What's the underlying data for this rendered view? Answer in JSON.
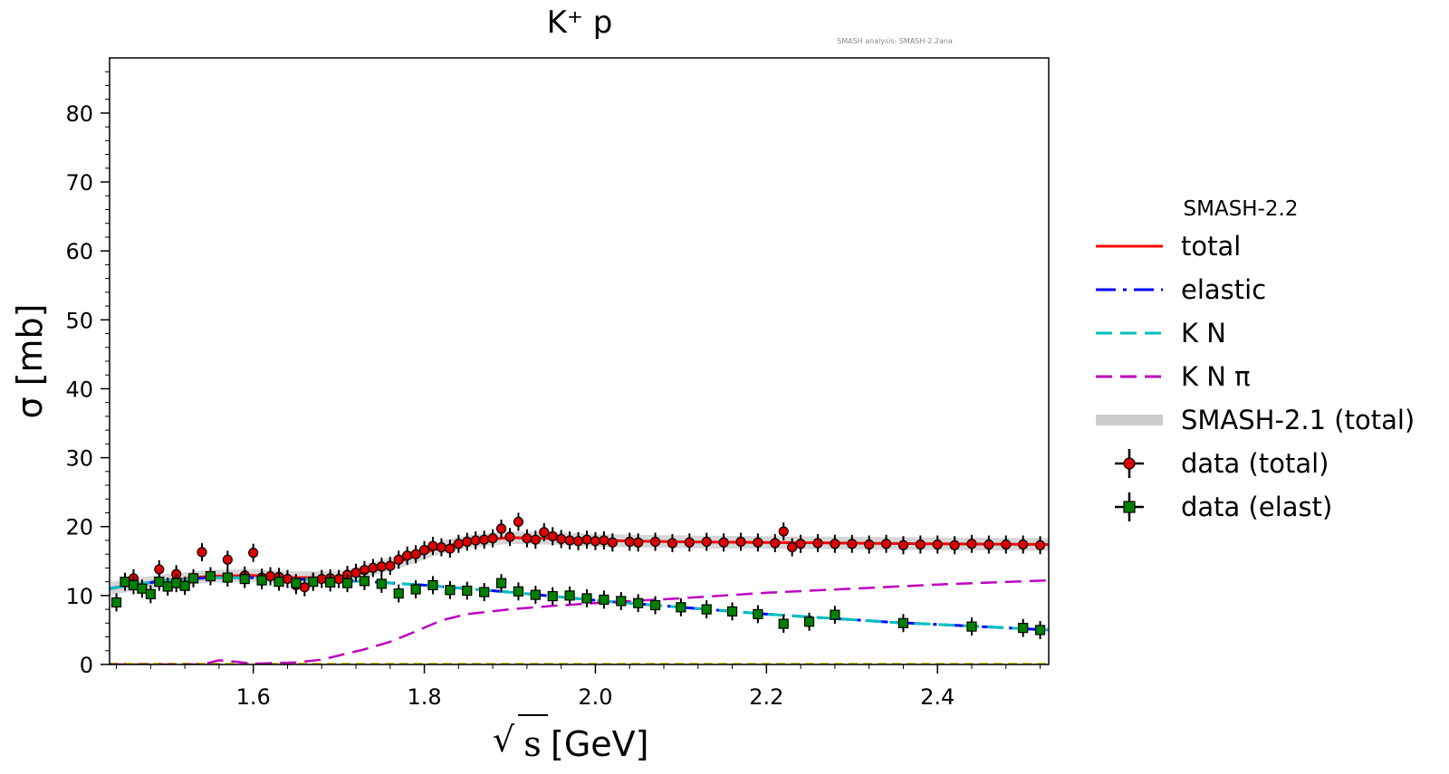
{
  "chart_data": {
    "type": "scatter",
    "title": "K⁺ p",
    "annotation": "SMASH analysis: SMASH-2.2ana",
    "xlabel": "√s [GeV]",
    "xlabel_root": "√",
    "xlabel_var": "s",
    "xlabel_unit": "[GeV]",
    "ylabel": "σ [mb]",
    "xlim": [
      1.432,
      2.53
    ],
    "ylim": [
      0,
      88
    ],
    "x_ticks": [
      1.6,
      1.8,
      2.0,
      2.2,
      2.4
    ],
    "x_tick_labels": [
      "1.6",
      "1.8",
      "2.0",
      "2.2",
      "2.4"
    ],
    "y_ticks": [
      0,
      10,
      20,
      30,
      40,
      50,
      60,
      70,
      80
    ],
    "y_tick_labels": [
      "0",
      "10",
      "20",
      "30",
      "40",
      "50",
      "60",
      "70",
      "80"
    ],
    "grid": false,
    "legend_placement": "outside-right",
    "legend_title": "SMASH-2.2",
    "series": [
      {
        "name": "total",
        "kind": "line",
        "color": "#ff0000",
        "style": "solid",
        "x": [
          1.432,
          1.46,
          1.5,
          1.55,
          1.6,
          1.65,
          1.7,
          1.72,
          1.75,
          1.78,
          1.8,
          1.82,
          1.85,
          1.88,
          1.9,
          1.95,
          2.0,
          2.05,
          2.1,
          2.2,
          2.3,
          2.4,
          2.53
        ],
        "y": [
          11.0,
          11.6,
          12.2,
          12.8,
          12.9,
          12.6,
          12.6,
          13.2,
          14.2,
          15.3,
          16.2,
          17.0,
          17.8,
          18.2,
          18.4,
          18.3,
          18.0,
          17.9,
          17.8,
          17.7,
          17.6,
          17.5,
          17.4
        ]
      },
      {
        "name": "elastic",
        "kind": "line",
        "color": "#0000ff",
        "style": "dashdot",
        "x": [
          1.432,
          1.46,
          1.5,
          1.55,
          1.6,
          1.65,
          1.7,
          1.75,
          1.8,
          1.85,
          1.9,
          1.95,
          2.0,
          2.05,
          2.1,
          2.15,
          2.2,
          2.25,
          2.3,
          2.35,
          2.4,
          2.45,
          2.53
        ],
        "y": [
          11.0,
          11.6,
          12.2,
          12.6,
          12.6,
          12.4,
          12.2,
          11.9,
          11.5,
          11.0,
          10.5,
          9.9,
          9.3,
          8.8,
          8.3,
          7.8,
          7.3,
          6.9,
          6.5,
          6.1,
          5.8,
          5.5,
          5.0
        ]
      },
      {
        "name": "K N",
        "kind": "line",
        "color": "#00bfbf",
        "style": "dashed",
        "x": [
          1.432,
          1.46,
          1.5,
          1.55,
          1.6,
          1.65,
          1.7,
          1.75,
          1.8,
          1.85,
          1.9,
          1.95,
          2.0,
          2.05,
          2.1,
          2.15,
          2.2,
          2.25,
          2.3,
          2.35,
          2.4,
          2.45,
          2.53
        ],
        "y": [
          11.0,
          11.6,
          12.2,
          12.6,
          12.6,
          12.4,
          12.2,
          11.9,
          11.5,
          11.0,
          10.5,
          9.9,
          9.3,
          8.8,
          8.3,
          7.8,
          7.3,
          6.9,
          6.5,
          6.1,
          5.8,
          5.5,
          5.0
        ]
      },
      {
        "name": "K N π",
        "kind": "line",
        "color": "#bf00bf",
        "style": "dashed",
        "x": [
          1.432,
          1.54,
          1.56,
          1.58,
          1.6,
          1.65,
          1.68,
          1.7,
          1.73,
          1.76,
          1.79,
          1.82,
          1.85,
          1.9,
          1.95,
          2.0,
          2.1,
          2.2,
          2.3,
          2.4,
          2.53
        ],
        "y": [
          0.0,
          0.0,
          0.6,
          0.4,
          0.1,
          0.3,
          0.7,
          1.3,
          2.2,
          3.3,
          4.8,
          6.4,
          7.3,
          8.0,
          8.5,
          8.9,
          9.6,
          10.4,
          11.0,
          11.6,
          12.2
        ]
      },
      {
        "name": "SMASH-2.1 (total)",
        "kind": "band",
        "color": "#cccccc",
        "style": "solid",
        "x": [
          1.432,
          1.46,
          1.5,
          1.55,
          1.6,
          1.65,
          1.7,
          1.72,
          1.75,
          1.78,
          1.8,
          1.82,
          1.85,
          1.88,
          1.9,
          1.95,
          2.0,
          2.05,
          2.1,
          2.2,
          2.3,
          2.4,
          2.53
        ],
        "y": [
          11.0,
          11.6,
          12.2,
          12.8,
          12.9,
          12.6,
          12.6,
          13.2,
          14.2,
          15.3,
          16.2,
          17.0,
          17.8,
          18.2,
          18.4,
          18.3,
          18.0,
          17.9,
          17.8,
          17.7,
          17.6,
          17.5,
          17.4
        ]
      },
      {
        "name": "data (total)",
        "kind": "points",
        "marker": "circle",
        "color": "#dd0000",
        "x": [
          1.46,
          1.49,
          1.51,
          1.54,
          1.57,
          1.59,
          1.6,
          1.61,
          1.62,
          1.63,
          1.64,
          1.65,
          1.66,
          1.67,
          1.68,
          1.69,
          1.7,
          1.71,
          1.72,
          1.73,
          1.74,
          1.75,
          1.76,
          1.77,
          1.78,
          1.79,
          1.8,
          1.81,
          1.82,
          1.83,
          1.84,
          1.85,
          1.86,
          1.87,
          1.88,
          1.89,
          1.9,
          1.91,
          1.92,
          1.93,
          1.94,
          1.95,
          1.96,
          1.97,
          1.98,
          1.99,
          2.0,
          2.01,
          2.02,
          2.04,
          2.05,
          2.07,
          2.09,
          2.11,
          2.13,
          2.15,
          2.17,
          2.19,
          2.21,
          2.22,
          2.23,
          2.24,
          2.26,
          2.28,
          2.3,
          2.32,
          2.34,
          2.36,
          2.38,
          2.4,
          2.42,
          2.44,
          2.46,
          2.48,
          2.5,
          2.52
        ],
        "y": [
          12.5,
          13.8,
          13.1,
          16.3,
          15.2,
          12.9,
          16.2,
          12.6,
          12.8,
          12.7,
          12.4,
          11.5,
          11.2,
          12.0,
          12.4,
          12.5,
          12.4,
          13.0,
          13.3,
          13.7,
          14.0,
          14.2,
          14.3,
          15.2,
          15.8,
          16.0,
          16.6,
          17.2,
          17.0,
          16.8,
          17.5,
          17.8,
          18.0,
          18.1,
          18.3,
          19.7,
          18.5,
          20.7,
          18.3,
          18.1,
          19.2,
          18.6,
          18.2,
          18.0,
          17.9,
          18.1,
          17.9,
          18.0,
          17.7,
          17.8,
          17.7,
          17.8,
          17.6,
          17.7,
          17.8,
          17.7,
          17.8,
          17.7,
          17.6,
          19.3,
          17.0,
          17.5,
          17.6,
          17.5,
          17.5,
          17.4,
          17.5,
          17.3,
          17.4,
          17.4,
          17.3,
          17.5,
          17.4,
          17.4,
          17.4,
          17.3
        ]
      },
      {
        "name": "data (elast)",
        "kind": "points",
        "marker": "square",
        "color": "#008000",
        "x": [
          1.44,
          1.45,
          1.46,
          1.47,
          1.48,
          1.49,
          1.5,
          1.51,
          1.52,
          1.53,
          1.55,
          1.57,
          1.59,
          1.61,
          1.63,
          1.65,
          1.67,
          1.69,
          1.71,
          1.73,
          1.75,
          1.77,
          1.79,
          1.81,
          1.83,
          1.85,
          1.87,
          1.89,
          1.91,
          1.93,
          1.95,
          1.97,
          1.99,
          2.01,
          2.03,
          2.05,
          2.07,
          2.1,
          2.13,
          2.16,
          2.19,
          2.22,
          2.25,
          2.28,
          2.36,
          2.44,
          2.5,
          2.52
        ],
        "y": [
          9.0,
          12.0,
          11.5,
          11.0,
          10.2,
          12.0,
          11.3,
          11.8,
          11.4,
          12.5,
          12.8,
          12.6,
          12.4,
          12.2,
          12.0,
          11.8,
          12.0,
          11.9,
          11.8,
          12.1,
          11.7,
          10.3,
          10.9,
          11.5,
          10.8,
          10.7,
          10.5,
          11.8,
          10.6,
          10.1,
          9.9,
          10.0,
          9.6,
          9.4,
          9.2,
          8.9,
          8.6,
          8.3,
          8.0,
          7.7,
          7.3,
          5.9,
          6.2,
          7.2,
          6.0,
          5.5,
          5.3,
          5.0
        ]
      }
    ]
  }
}
